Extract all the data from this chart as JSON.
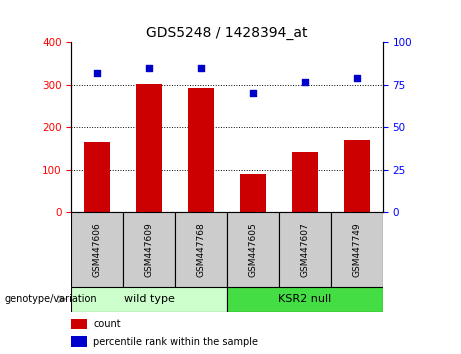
{
  "title": "GDS5248 / 1428394_at",
  "categories": [
    "GSM447606",
    "GSM447609",
    "GSM447768",
    "GSM447605",
    "GSM447607",
    "GSM447749"
  ],
  "bar_values": [
    165,
    303,
    292,
    90,
    143,
    170
  ],
  "percentile_values": [
    82,
    85,
    85,
    70,
    77,
    79
  ],
  "bar_color": "#cc0000",
  "dot_color": "#0000cc",
  "ylim_left": [
    0,
    400
  ],
  "ylim_right": [
    0,
    100
  ],
  "yticks_left": [
    0,
    100,
    200,
    300,
    400
  ],
  "yticks_right": [
    0,
    25,
    50,
    75,
    100
  ],
  "grid_values": [
    100,
    200,
    300
  ],
  "group1": {
    "label": "wild type",
    "indices": [
      0,
      1,
      2
    ],
    "color": "#ccffcc"
  },
  "group2": {
    "label": "KSR2 null",
    "indices": [
      3,
      4,
      5
    ],
    "color": "#44dd44"
  },
  "genotype_label": "genotype/variation",
  "legend_count": "count",
  "legend_percentile": "percentile rank within the sample",
  "bar_width": 0.5,
  "tick_label_bg": "#cccccc",
  "arrow_color": "#999999"
}
